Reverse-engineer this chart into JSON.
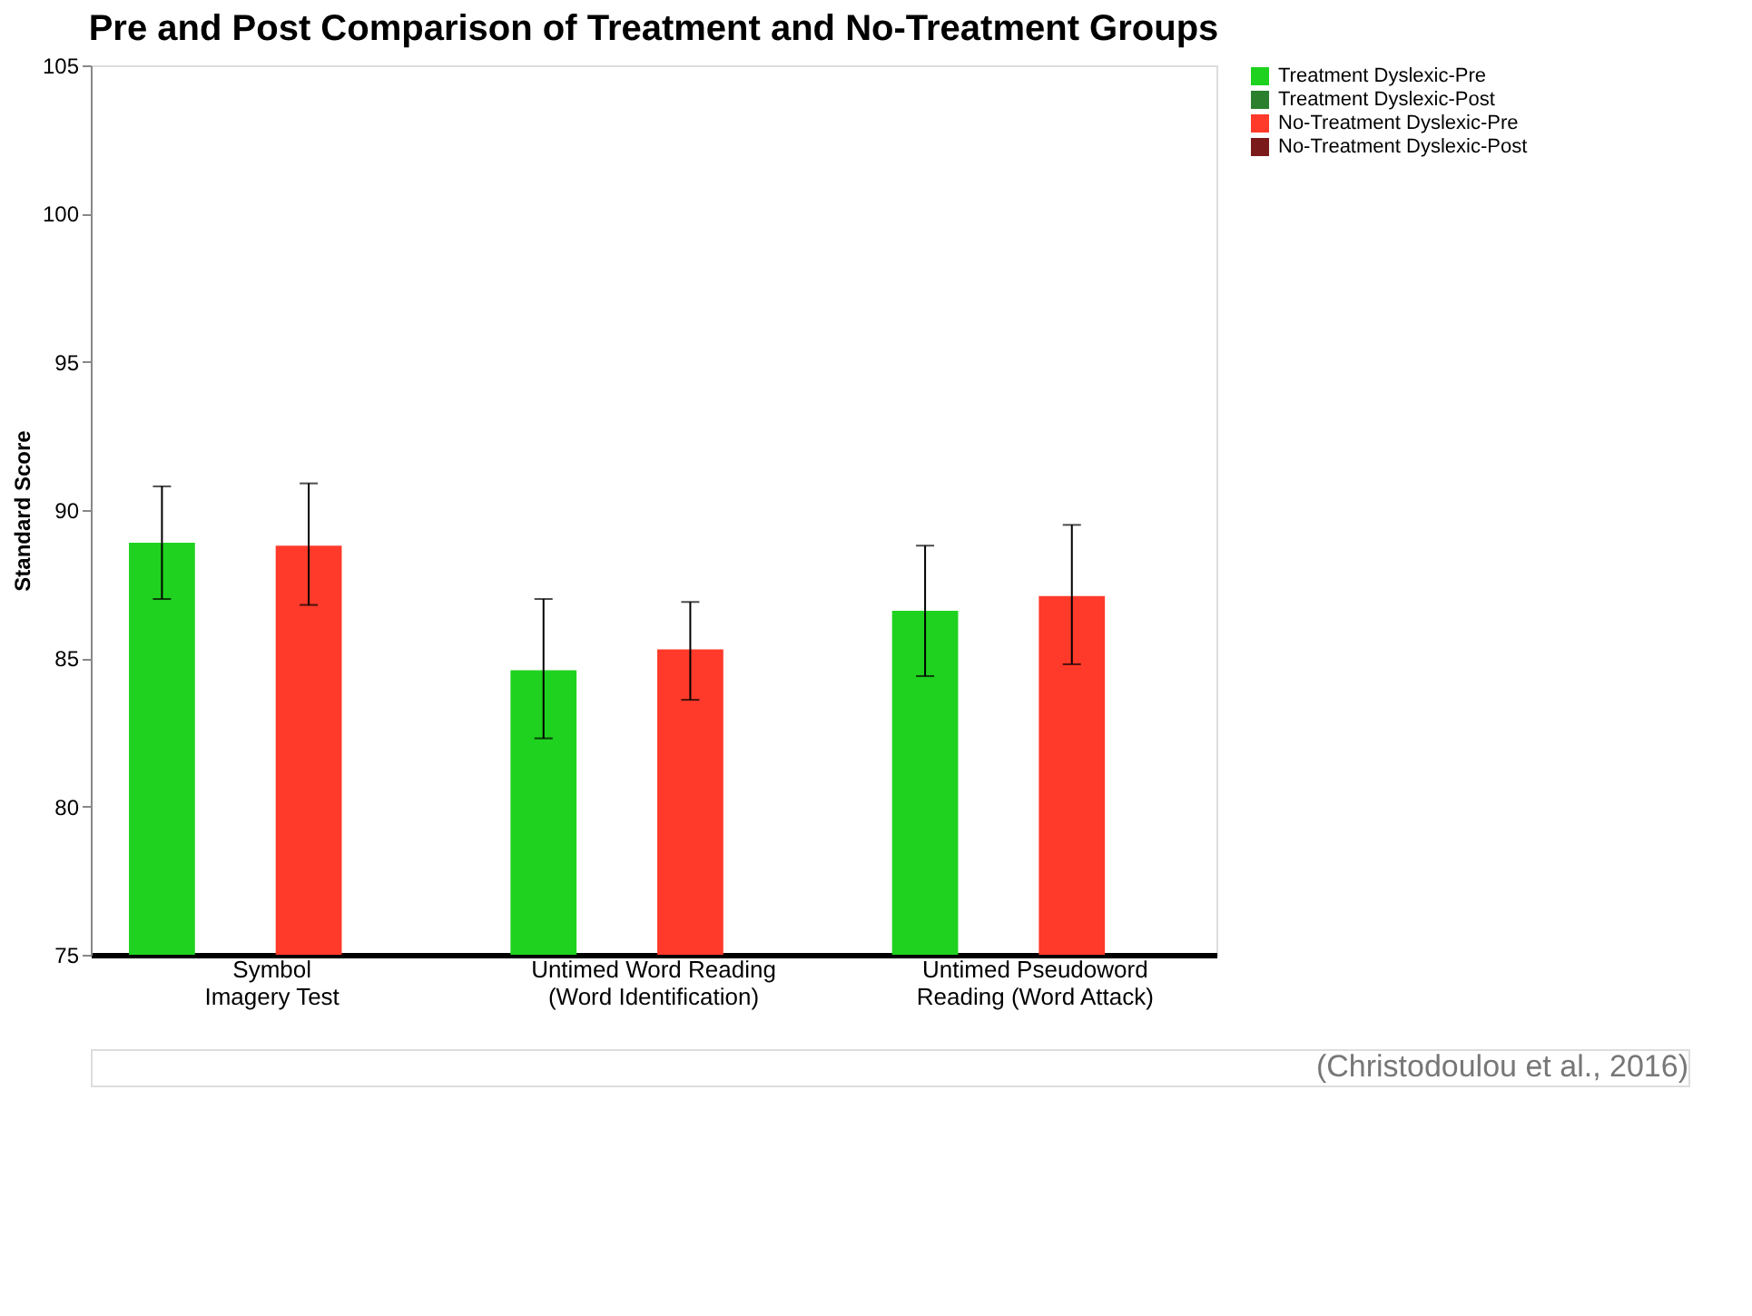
{
  "chart_data": {
    "type": "bar",
    "title": "Pre and Post Comparison of Treatment and No-Treatment Groups",
    "ylabel": "Standard Score",
    "categories": [
      "Symbol Imagery Test",
      "Untimed Word Reading (Word Identification)",
      "Untimed Pseudoword Reading (Word Attack)"
    ],
    "series": [
      {
        "name": "Treatment Dyslexic-Pre",
        "color": "#1fd21f",
        "values": [
          88.9,
          84.6,
          86.6
        ],
        "errors": [
          [
            87.0,
            90.8
          ],
          [
            82.3,
            87.0
          ],
          [
            84.4,
            88.8
          ]
        ]
      },
      {
        "name": "Treatment Dyslexic-Post",
        "color": "#2c7f2c",
        "values": [
          null,
          null,
          null
        ]
      },
      {
        "name": "No-Treatment Dyslexic-Pre",
        "color": "#ff3a2a",
        "values": [
          88.8,
          85.3,
          87.1
        ],
        "errors": [
          [
            86.8,
            90.9
          ],
          [
            83.6,
            86.9
          ],
          [
            84.8,
            89.5
          ]
        ]
      },
      {
        "name": "No-Treatment Dyslexic-Post",
        "color": "#7a1a1a",
        "values": [
          null,
          null,
          null
        ]
      }
    ],
    "ylim": [
      75,
      105
    ],
    "yticks": [
      75,
      80,
      85,
      90,
      95,
      100,
      105
    ],
    "grid": false,
    "legend": "right",
    "annotations": [
      "(Christodoulou et al., 2016)"
    ]
  }
}
